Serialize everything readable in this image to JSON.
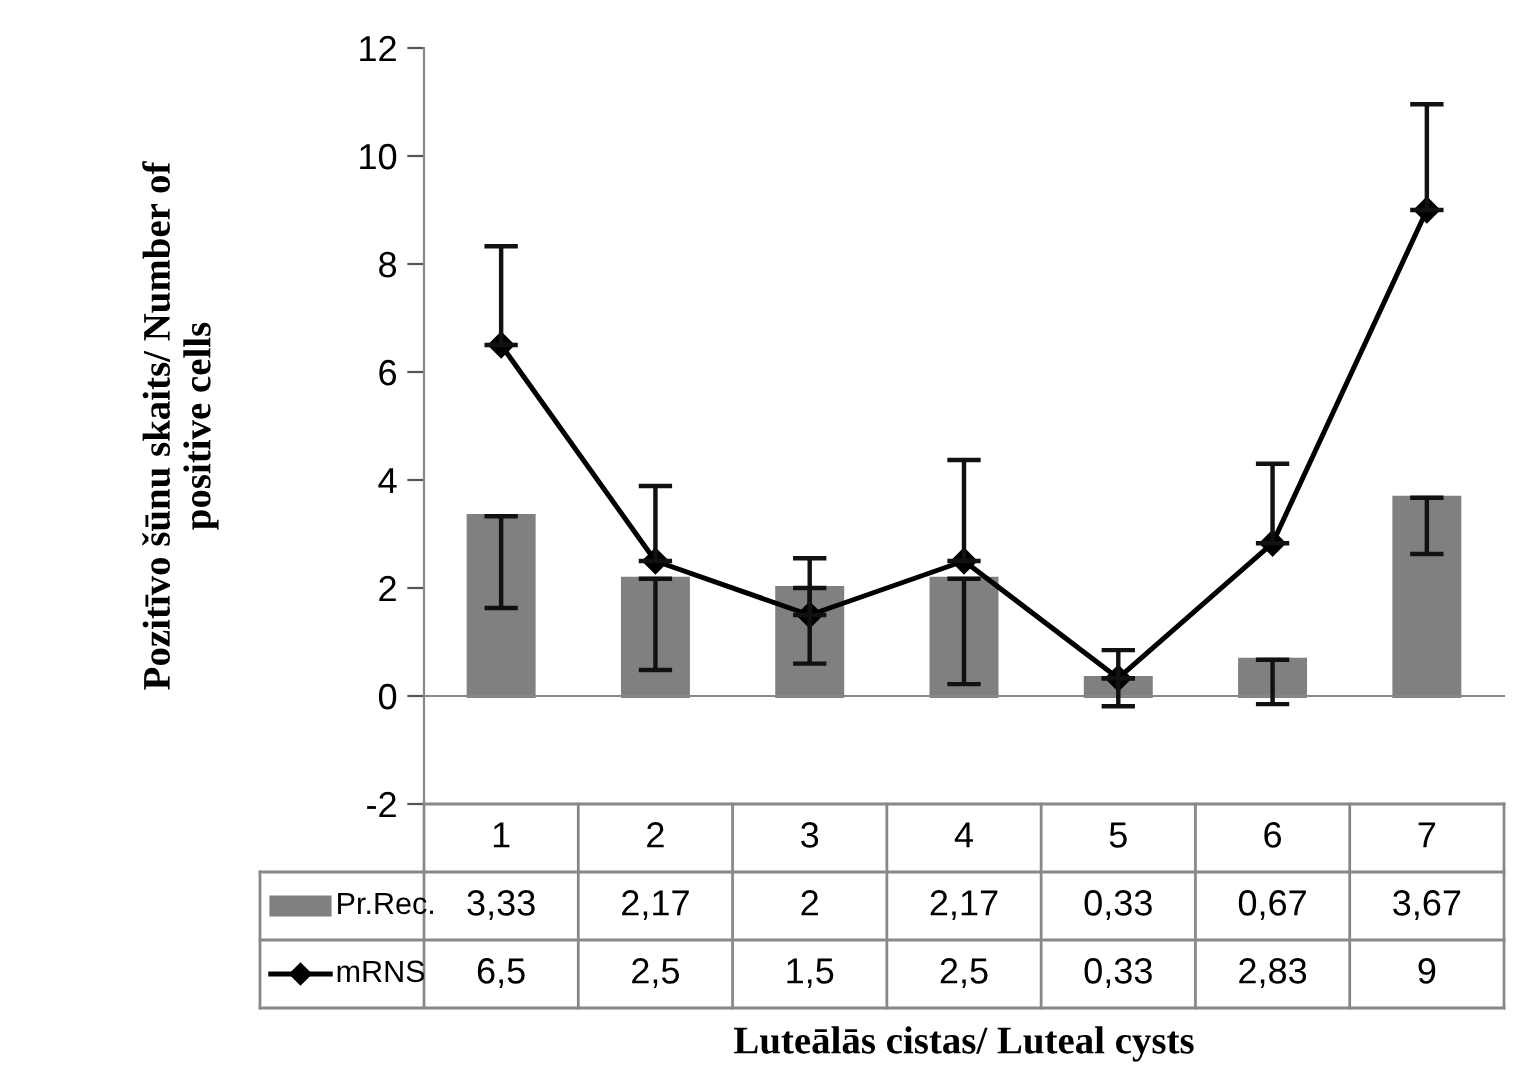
{
  "chart_data": {
    "type": "bar",
    "xlabel": "Luteālās cistas/ Luteal cysts",
    "ylabel": "Pozitīvo šūnu skaits/ Number of\npositive cells",
    "categories": [
      "1",
      "2",
      "3",
      "4",
      "5",
      "6",
      "7"
    ],
    "ylim": [
      -2,
      12
    ],
    "yticks": [
      -2,
      0,
      2,
      4,
      6,
      8,
      10,
      12
    ],
    "legend": "bottom",
    "series": [
      {
        "name": "Pr.Rec.",
        "color": "#808080",
        "values": [
          3.33,
          2.17,
          2,
          2.17,
          0.33,
          0.67,
          3.67
        ],
        "value_labels": [
          "3,33",
          "2,17",
          "2",
          "2,17",
          "0,33",
          "0,67",
          "3,67"
        ],
        "errors": [
          [
            1.63,
            3.33
          ],
          [
            0.48,
            2.17
          ],
          [
            0.6,
            2
          ],
          [
            0.22,
            2.17
          ],
          [
            -0.19,
            0.33
          ],
          [
            -0.15,
            0.67
          ],
          [
            2.63,
            3.67
          ]
        ]
      },
      {
        "name": "mRNS",
        "type": "line",
        "color": "#000000",
        "marker": "diamond",
        "line_style": "solid",
        "values": [
          6.5,
          2.5,
          1.5,
          2.5,
          0.33,
          2.83,
          9
        ],
        "value_labels": [
          "6,5",
          "2,5",
          "1,5",
          "2,5",
          "0,33",
          "2,83",
          "9"
        ],
        "errors": [
          [
            6.5,
            8.33
          ],
          [
            2.5,
            3.89
          ],
          [
            1.5,
            2.55
          ],
          [
            2.5,
            4.37
          ],
          [
            0.33,
            0.85
          ],
          [
            2.83,
            4.3
          ],
          [
            9,
            10.96
          ]
        ]
      }
    ]
  }
}
